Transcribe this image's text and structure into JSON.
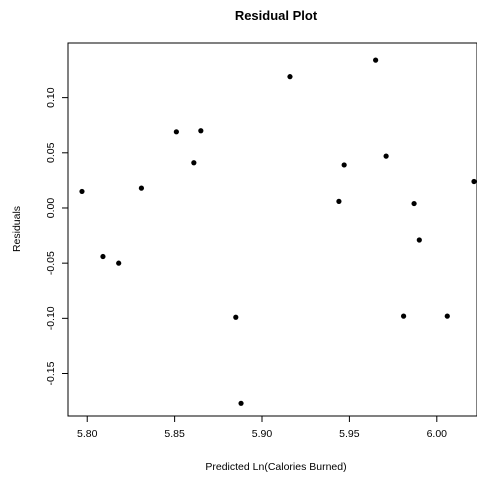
{
  "chart_data": {
    "type": "scatter",
    "title": "Residual Plot",
    "xlabel": "Predicted Ln(Calories Burned)",
    "ylabel": "Residuals",
    "xlim": [
      5.789,
      6.023
    ],
    "ylim": [
      -0.1885,
      0.1495
    ],
    "grid": false,
    "x_ticks": [
      5.8,
      5.85,
      5.9,
      5.95,
      6.0
    ],
    "x_tick_labels": [
      "5.80",
      "5.85",
      "5.90",
      "5.95",
      "6.00"
    ],
    "y_ticks": [
      -0.15,
      -0.1,
      -0.05,
      0.0,
      0.05,
      0.1
    ],
    "y_tick_labels": [
      "-0.15",
      "-0.10",
      "-0.05",
      "0.00",
      "0.05",
      "0.10"
    ],
    "points": [
      {
        "x": 5.797,
        "y": 0.015
      },
      {
        "x": 5.809,
        "y": -0.044
      },
      {
        "x": 5.818,
        "y": -0.05
      },
      {
        "x": 5.831,
        "y": 0.018
      },
      {
        "x": 5.851,
        "y": 0.069
      },
      {
        "x": 5.861,
        "y": 0.041
      },
      {
        "x": 5.865,
        "y": 0.07
      },
      {
        "x": 5.885,
        "y": -0.099
      },
      {
        "x": 5.888,
        "y": -0.177
      },
      {
        "x": 5.916,
        "y": 0.119
      },
      {
        "x": 5.944,
        "y": 0.006
      },
      {
        "x": 5.947,
        "y": 0.039
      },
      {
        "x": 5.965,
        "y": 0.134
      },
      {
        "x": 5.971,
        "y": 0.047
      },
      {
        "x": 5.981,
        "y": -0.098
      },
      {
        "x": 5.987,
        "y": 0.004
      },
      {
        "x": 5.99,
        "y": -0.029
      },
      {
        "x": 6.006,
        "y": -0.098
      },
      {
        "x": 6.023,
        "y": 0.024
      }
    ]
  }
}
